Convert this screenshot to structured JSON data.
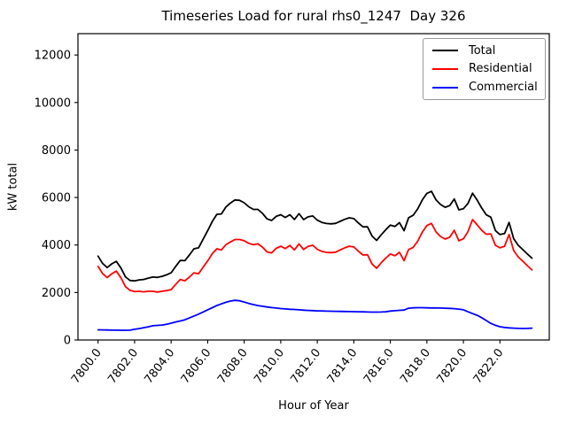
{
  "chart_data": {
    "type": "line",
    "title": "Timeseries Load for rural rhs0_1247  Day 326",
    "xlabel": "Hour of Year",
    "ylabel": "kW total",
    "xlim": [
      7798.9,
      7824.7
    ],
    "ylim": [
      0,
      12900
    ],
    "xticks": [
      7800,
      7802,
      7804,
      7806,
      7808,
      7810,
      7812,
      7814,
      7816,
      7818,
      7820,
      7822
    ],
    "xtick_labels": [
      "7800.0",
      "7802.0",
      "7804.0",
      "7806.0",
      "7808.0",
      "7810.0",
      "7812.0",
      "7814.0",
      "7816.0",
      "7818.0",
      "7820.0",
      "7822.0"
    ],
    "yticks": [
      0,
      2000,
      4000,
      6000,
      8000,
      10000,
      12000
    ],
    "ytick_labels": [
      "0",
      "2000",
      "4000",
      "6000",
      "8000",
      "10000",
      "12000"
    ],
    "grid": false,
    "legend_position": "upper right",
    "x": {
      "start": 7800.0,
      "step": 0.25,
      "count": 96
    },
    "series": [
      {
        "name": "Total",
        "color": "#000000",
        "values": [
          3530,
          3225,
          3050,
          3205,
          3310,
          3030,
          2660,
          2505,
          2490,
          2530,
          2550,
          2605,
          2650,
          2635,
          2680,
          2745,
          2830,
          3100,
          3350,
          3340,
          3580,
          3840,
          3880,
          4240,
          4600,
          4990,
          5290,
          5310,
          5600,
          5770,
          5900,
          5880,
          5780,
          5610,
          5500,
          5500,
          5330,
          5100,
          5035,
          5205,
          5275,
          5160,
          5275,
          5075,
          5320,
          5070,
          5185,
          5225,
          5050,
          4950,
          4905,
          4890,
          4910,
          4995,
          5080,
          5145,
          5110,
          4930,
          4765,
          4770,
          4375,
          4195,
          4430,
          4640,
          4840,
          4785,
          4940,
          4600,
          5150,
          5255,
          5520,
          5900,
          6175,
          6260,
          5900,
          5705,
          5590,
          5660,
          5940,
          5480,
          5530,
          5750,
          6180,
          5890,
          5560,
          5270,
          5170,
          4610,
          4440,
          4480,
          4950,
          4270,
          3990,
          3805,
          3620,
          3450
        ]
      },
      {
        "name": "Residential",
        "color": "#ff0000",
        "values": [
          3100,
          2800,
          2630,
          2790,
          2900,
          2620,
          2250,
          2090,
          2040,
          2050,
          2030,
          2050,
          2050,
          2020,
          2050,
          2080,
          2120,
          2340,
          2550,
          2490,
          2650,
          2830,
          2790,
          3060,
          3330,
          3630,
          3840,
          3790,
          4010,
          4130,
          4230,
          4230,
          4180,
          4070,
          4010,
          4050,
          3910,
          3710,
          3670,
          3860,
          3950,
          3850,
          3980,
          3790,
          4050,
          3810,
          3940,
          3990,
          3820,
          3730,
          3690,
          3680,
          3700,
          3790,
          3880,
          3950,
          3920,
          3740,
          3580,
          3590,
          3200,
          3020,
          3250,
          3450,
          3620,
          3550,
          3690,
          3340,
          3810,
          3900,
          4160,
          4540,
          4820,
          4910,
          4550,
          4360,
          4250,
          4330,
          4620,
          4180,
          4260,
          4560,
          5070,
          4850,
          4620,
          4450,
          4470,
          3990,
          3880,
          3950,
          4440,
          3770,
          3500,
          3320,
          3130,
          2950
        ]
      },
      {
        "name": "Commercial",
        "color": "#0000ff",
        "values": [
          430,
          425,
          420,
          415,
          412,
          410,
          410,
          415,
          450,
          480,
          520,
          555,
          600,
          615,
          630,
          665,
          710,
          760,
          800,
          850,
          930,
          1010,
          1090,
          1180,
          1270,
          1360,
          1450,
          1520,
          1590,
          1640,
          1670,
          1650,
          1600,
          1540,
          1490,
          1450,
          1420,
          1390,
          1365,
          1345,
          1325,
          1310,
          1295,
          1285,
          1270,
          1258,
          1246,
          1236,
          1228,
          1222,
          1216,
          1212,
          1208,
          1204,
          1200,
          1196,
          1192,
          1188,
          1184,
          1180,
          1176,
          1174,
          1180,
          1190,
          1220,
          1235,
          1250,
          1260,
          1340,
          1355,
          1360,
          1360,
          1355,
          1350,
          1350,
          1345,
          1340,
          1330,
          1320,
          1300,
          1270,
          1190,
          1110,
          1040,
          940,
          820,
          700,
          620,
          560,
          530,
          510,
          500,
          490,
          485,
          490,
          500
        ]
      }
    ]
  }
}
